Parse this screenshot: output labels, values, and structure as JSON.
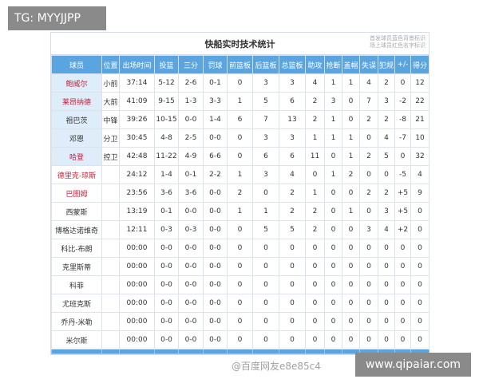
{
  "badge": "TG: MYYJJPP",
  "site": "www.qipaiar.com",
  "watermark": "@百度网友e8e85c4",
  "title": "快船实时技术统计",
  "note": [
    "首发球员蓝色背景标识",
    "场上球员红色名字标识"
  ],
  "columns": [
    "球员",
    "位置",
    "出场时间",
    "投篮",
    "三分",
    "罚球",
    "前篮板",
    "后篮板",
    "总篮板",
    "助攻",
    "抢断",
    "盖帽",
    "失误",
    "犯规",
    "+/-",
    "得分"
  ],
  "rows": [
    {
      "starter": true,
      "on_court": true,
      "cells": [
        "鲍威尔",
        "小前",
        "37:14",
        "5-12",
        "2-6",
        "0-1",
        "0",
        "3",
        "3",
        "4",
        "1",
        "1",
        "4",
        "2",
        "0",
        "12"
      ]
    },
    {
      "starter": true,
      "on_court": true,
      "cells": [
        "莱昂纳德",
        "大前",
        "41:09",
        "9-15",
        "1-3",
        "3-3",
        "1",
        "5",
        "6",
        "2",
        "3",
        "0",
        "7",
        "3",
        "-2",
        "22"
      ]
    },
    {
      "starter": true,
      "on_court": false,
      "cells": [
        "祖巴茨",
        "中锋",
        "39:26",
        "10-15",
        "0-0",
        "1-4",
        "6",
        "7",
        "13",
        "2",
        "1",
        "0",
        "2",
        "2",
        "-8",
        "21"
      ]
    },
    {
      "starter": true,
      "on_court": false,
      "cells": [
        "邓恩",
        "分卫",
        "30:45",
        "4-8",
        "2-5",
        "0-0",
        "0",
        "3",
        "3",
        "1",
        "1",
        "1",
        "0",
        "4",
        "-7",
        "10"
      ]
    },
    {
      "starter": true,
      "on_court": true,
      "cells": [
        "哈登",
        "控卫",
        "42:48",
        "11-22",
        "4-9",
        "6-6",
        "0",
        "6",
        "6",
        "11",
        "0",
        "1",
        "2",
        "5",
        "0",
        "32"
      ]
    },
    {
      "starter": false,
      "on_court": true,
      "cells": [
        "德里克-琼斯",
        "",
        "24:12",
        "1-4",
        "0-1",
        "2-2",
        "1",
        "3",
        "4",
        "0",
        "1",
        "2",
        "0",
        "0",
        "-5",
        "4"
      ]
    },
    {
      "starter": false,
      "on_court": true,
      "cells": [
        "巴图姆",
        "",
        "23:56",
        "3-6",
        "3-6",
        "0-0",
        "2",
        "0",
        "2",
        "1",
        "0",
        "0",
        "2",
        "2",
        "+5",
        "9"
      ]
    },
    {
      "starter": false,
      "on_court": false,
      "cells": [
        "西蒙斯",
        "",
        "13:19",
        "0-1",
        "0-0",
        "0-0",
        "1",
        "1",
        "2",
        "2",
        "0",
        "1",
        "0",
        "3",
        "+5",
        "0"
      ]
    },
    {
      "starter": false,
      "on_court": false,
      "cells": [
        "博格达诺维奇",
        "",
        "12:11",
        "0-3",
        "0-3",
        "0-0",
        "0",
        "5",
        "5",
        "2",
        "0",
        "0",
        "3",
        "4",
        "+2",
        "0"
      ]
    },
    {
      "starter": false,
      "on_court": false,
      "cells": [
        "科比-布朗",
        "",
        "00:00",
        "0-0",
        "0-0",
        "0-0",
        "0",
        "0",
        "0",
        "0",
        "0",
        "0",
        "0",
        "0",
        "0",
        "0"
      ]
    },
    {
      "starter": false,
      "on_court": false,
      "cells": [
        "克里斯蒂",
        "",
        "00:00",
        "0-0",
        "0-0",
        "0-0",
        "0",
        "0",
        "0",
        "0",
        "0",
        "0",
        "0",
        "0",
        "0",
        "0"
      ]
    },
    {
      "starter": false,
      "on_court": false,
      "cells": [
        "科菲",
        "",
        "00:00",
        "0-0",
        "0-0",
        "0-0",
        "0",
        "0",
        "0",
        "0",
        "0",
        "0",
        "0",
        "0",
        "0",
        "0"
      ]
    },
    {
      "starter": false,
      "on_court": false,
      "cells": [
        "尤班克斯",
        "",
        "00:00",
        "0-0",
        "0-0",
        "0-0",
        "0",
        "0",
        "0",
        "0",
        "0",
        "0",
        "0",
        "0",
        "0",
        "0"
      ]
    },
    {
      "starter": false,
      "on_court": false,
      "cells": [
        "乔丹-米勒",
        "",
        "00:00",
        "0-0",
        "0-0",
        "0-0",
        "0",
        "0",
        "0",
        "0",
        "0",
        "0",
        "0",
        "0",
        "0",
        "0"
      ]
    },
    {
      "starter": false,
      "on_court": false,
      "cells": [
        "米尔斯",
        "",
        "00:00",
        "0-0",
        "0-0",
        "0-0",
        "0",
        "0",
        "0",
        "0",
        "0",
        "0",
        "0",
        "0",
        "0",
        "0"
      ]
    }
  ],
  "colors": {
    "header": "#5aa5e0",
    "starter_bg": "#dfecf9",
    "on_court_text": "#c0243a"
  }
}
